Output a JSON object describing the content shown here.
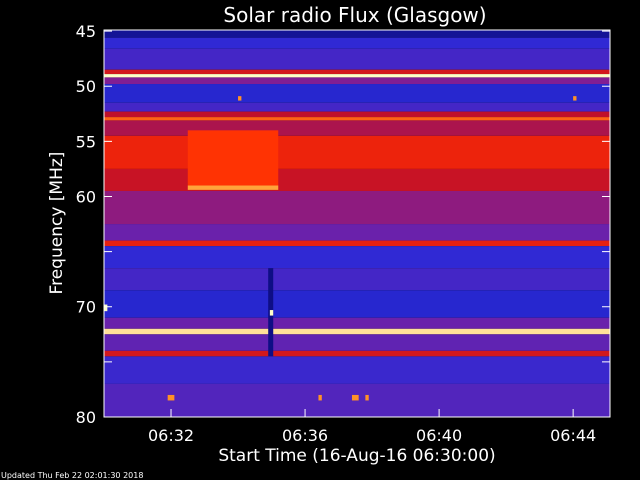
{
  "chart_data": {
    "type": "heatmap",
    "title": "Solar radio Flux (Glasgow)",
    "xlabel": "Start Time (16-Aug-16 06:30:00)",
    "ylabel": "Frequency [MHz]",
    "x_ticks": [
      "06:32",
      "06:36",
      "06:40",
      "06:44"
    ],
    "x_tick_minutes": [
      2,
      6,
      10,
      14
    ],
    "xlim_minutes": [
      0,
      15.1
    ],
    "y_ticks": [
      45,
      50,
      55,
      60,
      65,
      70,
      75,
      80
    ],
    "y_tick_labels": [
      "45",
      "50",
      "55",
      "60",
      "",
      "70",
      "",
      "80"
    ],
    "ylim": [
      80,
      44.9
    ],
    "y_axis_inverted": true,
    "colormap": [
      "#0a0a7a",
      "#2a2ad8",
      "#7a1fa0",
      "#c0102a",
      "#ff2a00",
      "#ff9a2a",
      "#ffffc8"
    ],
    "bands": [
      {
        "from": 44.9,
        "to": 45.6,
        "level": 0.05
      },
      {
        "from": 45.6,
        "to": 46.6,
        "level": 0.18
      },
      {
        "from": 46.6,
        "to": 48.5,
        "level": 0.22
      },
      {
        "from": 48.5,
        "to": 48.9,
        "level": 0.55
      },
      {
        "from": 48.9,
        "to": 49.2,
        "level": 1.0
      },
      {
        "from": 49.2,
        "to": 49.8,
        "level": 0.35
      },
      {
        "from": 49.8,
        "to": 51.5,
        "level": 0.15
      },
      {
        "from": 51.5,
        "to": 52.3,
        "level": 0.22
      },
      {
        "from": 52.3,
        "to": 52.8,
        "level": 0.5
      },
      {
        "from": 52.8,
        "to": 53.1,
        "level": 0.75
      },
      {
        "from": 53.1,
        "to": 54.5,
        "level": 0.45
      },
      {
        "from": 54.5,
        "to": 57.5,
        "level": 0.62
      },
      {
        "from": 57.5,
        "to": 59.5,
        "level": 0.52
      },
      {
        "from": 59.5,
        "to": 62.5,
        "level": 0.38
      },
      {
        "from": 62.5,
        "to": 64.0,
        "level": 0.3
      },
      {
        "from": 64.0,
        "to": 64.5,
        "level": 0.6
      },
      {
        "from": 64.5,
        "to": 66.5,
        "level": 0.18
      },
      {
        "from": 66.5,
        "to": 68.5,
        "level": 0.22
      },
      {
        "from": 68.5,
        "to": 71.0,
        "level": 0.15
      },
      {
        "from": 71.0,
        "to": 72.0,
        "level": 0.3
      },
      {
        "from": 72.0,
        "to": 72.5,
        "level": 0.95
      },
      {
        "from": 72.5,
        "to": 74.0,
        "level": 0.28
      },
      {
        "from": 74.0,
        "to": 74.5,
        "level": 0.55
      },
      {
        "from": 74.5,
        "to": 77.0,
        "level": 0.2
      },
      {
        "from": 77.0,
        "to": 80.0,
        "level": 0.25
      }
    ],
    "features": [
      {
        "t_from": 2.5,
        "t_to": 5.2,
        "f_from": 59.0,
        "f_to": 59.4,
        "level": 0.85
      },
      {
        "t_from": 2.5,
        "t_to": 5.2,
        "f_from": 54.0,
        "f_to": 59.0,
        "level": 0.68
      },
      {
        "t_from": 4.9,
        "t_to": 5.05,
        "f_from": 66.5,
        "f_to": 74.5,
        "level": 0.02
      },
      {
        "t_from": 4.95,
        "t_to": 5.05,
        "f_from": 70.3,
        "f_to": 70.8,
        "level": 1.0
      },
      {
        "t_from": 0.0,
        "t_to": 0.1,
        "f_from": 69.8,
        "f_to": 70.4,
        "level": 1.0
      },
      {
        "t_from": 1.9,
        "t_to": 2.1,
        "f_from": 78.0,
        "f_to": 78.5,
        "level": 0.82
      },
      {
        "t_from": 7.4,
        "t_to": 7.6,
        "f_from": 78.0,
        "f_to": 78.5,
        "level": 0.82
      },
      {
        "t_from": 6.4,
        "t_to": 6.5,
        "f_from": 78.0,
        "f_to": 78.5,
        "level": 0.82
      },
      {
        "t_from": 7.8,
        "t_to": 7.9,
        "f_from": 78.0,
        "f_to": 78.5,
        "level": 0.82
      },
      {
        "t_from": 4.0,
        "t_to": 4.1,
        "f_from": 50.9,
        "f_to": 51.3,
        "level": 0.82
      },
      {
        "t_from": 14.0,
        "t_to": 14.1,
        "f_from": 50.9,
        "f_to": 51.3,
        "level": 0.82
      }
    ],
    "grid": false,
    "legend": "none"
  },
  "footer": {
    "updated_text": "Updated Thu Feb 22 02:01:30 2018"
  }
}
